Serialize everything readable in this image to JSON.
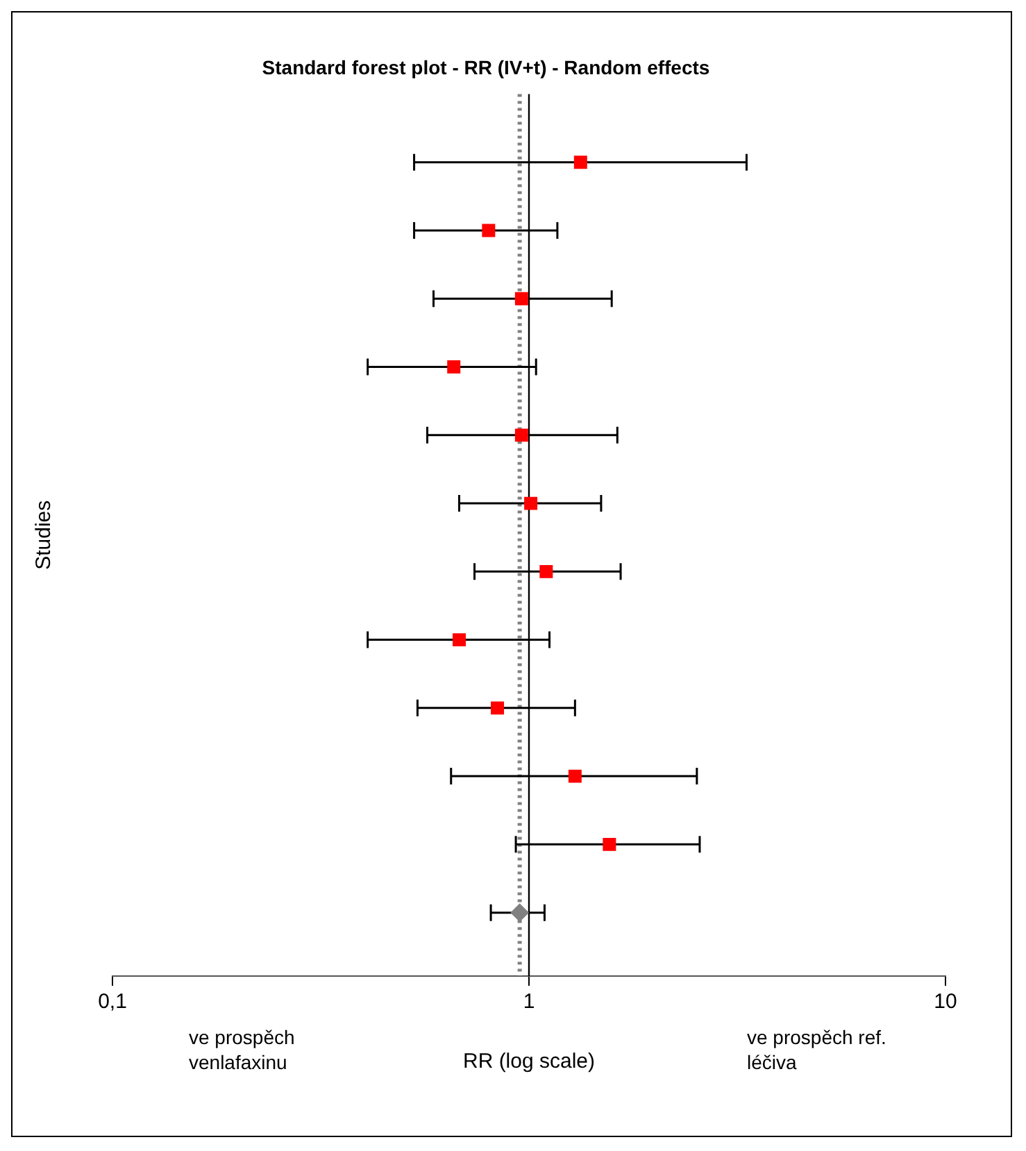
{
  "chart_data": {
    "type": "scatter",
    "title": "Standard forest plot - RR (IV+t) - Random effects",
    "xlabel": "RR (log scale)",
    "ylabel": "Studies",
    "orientation": "horizontal",
    "categories": [
      null,
      null,
      null,
      null,
      null,
      null,
      null,
      null,
      null,
      null,
      null,
      null
    ],
    "series": [
      {
        "color": "#ff0000",
        "marker": "square",
        "values": [
          1.33,
          0.8,
          0.96,
          0.66,
          0.96,
          1.01,
          1.1,
          0.68,
          0.84,
          1.29,
          1.56,
          null
        ],
        "errors": [
          [
            0.53,
            3.33
          ],
          [
            0.53,
            1.17
          ],
          [
            0.59,
            1.58
          ],
          [
            0.41,
            1.04
          ],
          [
            0.57,
            1.63
          ],
          [
            0.68,
            1.49
          ],
          [
            0.74,
            1.66
          ],
          [
            0.41,
            1.12
          ],
          [
            0.54,
            1.29
          ],
          [
            0.65,
            2.53
          ],
          [
            0.93,
            2.57
          ],
          null
        ]
      },
      {
        "color": "#808080",
        "marker": "diamond",
        "values": [
          null,
          null,
          null,
          null,
          null,
          null,
          null,
          null,
          null,
          null,
          null,
          0.95
        ],
        "errors": [
          null,
          null,
          null,
          null,
          null,
          null,
          null,
          null,
          null,
          null,
          null,
          [
            0.81,
            1.09
          ]
        ]
      }
    ],
    "xlim": [
      0.1,
      10
    ],
    "xticks": [
      {
        "value": 0.1,
        "label": "0,1"
      },
      1,
      10
    ],
    "log": "x",
    "grid": false,
    "legend": false,
    "tick_labels": "x",
    "ref_lines": [
      {
        "axis": "x",
        "value": 1,
        "color": "#000000",
        "line_style": "solid"
      },
      {
        "axis": "x",
        "value": 0.95,
        "color": "#808080",
        "line_style": "dotted"
      }
    ],
    "annotations": [
      "ve prospěch venlafaxinu",
      "ve prospěch ref. léčiva"
    ]
  }
}
